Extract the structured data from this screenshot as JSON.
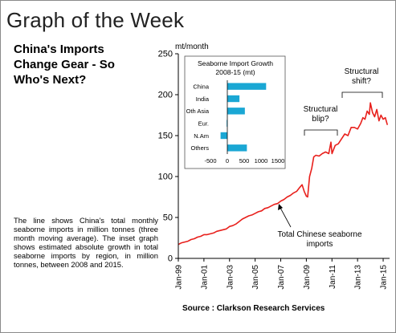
{
  "page": {
    "title": "Graph of the Week",
    "headline": "China's Imports Change Gear - So Who's Next?",
    "description": "The line shows China's total monthly seaborne imports in million tonnes (three month moving average). The inset graph shows estimated absolute growth in total seaborne imports by region, in million tonnes, between 2008 and 2015.",
    "source": "Source : Clarkson Research Services"
  },
  "colors": {
    "main_line": "#e8201c",
    "inset_bar": "#1aa7d4",
    "axis": "#000000"
  },
  "chart_data": [
    {
      "type": "line",
      "ylabel": "mt/month",
      "ylim": [
        0,
        250
      ],
      "yticks": [
        0,
        50,
        100,
        150,
        200,
        250
      ],
      "xlim": [
        1999,
        2015.5
      ],
      "xticks": [
        {
          "label": "Jan-99",
          "x": 1999
        },
        {
          "label": "Jan-01",
          "x": 2001
        },
        {
          "label": "Jan-03",
          "x": 2003
        },
        {
          "label": "Jan-05",
          "x": 2005
        },
        {
          "label": "Jan-07",
          "x": 2007
        },
        {
          "label": "Jan-09",
          "x": 2009
        },
        {
          "label": "Jan-11",
          "x": 2011
        },
        {
          "label": "Jan-13",
          "x": 2013
        },
        {
          "label": "Jan-15",
          "x": 2015
        }
      ],
      "series": [
        {
          "x": [
            1999.0,
            1999.25,
            1999.5,
            1999.75,
            2000.0,
            2000.25,
            2000.5,
            2000.75,
            2001.0,
            2001.25,
            2001.5,
            2001.75,
            2002.0,
            2002.25,
            2002.5,
            2002.75,
            2003.0,
            2003.25,
            2003.5,
            2003.75,
            2004.0,
            2004.25,
            2004.5,
            2004.75,
            2005.0,
            2005.25,
            2005.5,
            2005.75,
            2006.0,
            2006.25,
            2006.5,
            2006.75,
            2007.0,
            2007.25,
            2007.5,
            2007.75,
            2008.0,
            2008.25,
            2008.5,
            2008.67,
            2008.83,
            2009.0,
            2009.1,
            2009.25,
            2009.42,
            2009.58,
            2009.75,
            2010.0,
            2010.25,
            2010.5,
            2010.75,
            2010.92,
            2011.0,
            2011.25,
            2011.5,
            2011.75,
            2012.0,
            2012.25,
            2012.5,
            2012.75,
            2013.0,
            2013.25,
            2013.42,
            2013.58,
            2013.75,
            2013.92,
            2014.0,
            2014.17,
            2014.33,
            2014.5,
            2014.67,
            2014.83,
            2015.0,
            2015.17,
            2015.33
          ],
          "values": [
            17,
            19,
            20,
            21,
            23,
            24,
            26,
            27,
            29,
            29,
            30,
            31,
            33,
            34,
            35,
            36,
            39,
            40,
            42,
            45,
            48,
            50,
            52,
            53,
            55,
            57,
            58,
            61,
            62,
            64,
            66,
            67,
            70,
            72,
            75,
            77,
            80,
            82,
            87,
            90,
            82,
            76,
            75,
            100,
            110,
            124,
            126,
            125,
            128,
            130,
            128,
            142,
            128,
            138,
            140,
            146,
            152,
            150,
            160,
            160,
            158,
            165,
            172,
            170,
            180,
            176,
            190,
            178,
            173,
            182,
            168,
            175,
            170,
            172,
            163
          ]
        }
      ],
      "annotations": [
        "Structural blip?",
        "Structural shift?",
        "Total Chinese seaborne imports"
      ]
    },
    {
      "type": "bar",
      "orientation": "horizontal",
      "title": "Seaborne Import Growth 2008-15 (mt)",
      "categories": [
        "China",
        "India",
        "Oth Asia",
        "Eur.",
        "N.Am",
        "Others"
      ],
      "values": [
        1150,
        360,
        520,
        -20,
        -200,
        580
      ],
      "xlim": [
        -500,
        1500
      ],
      "xticks": [
        -500,
        0,
        500,
        1000,
        1500
      ]
    }
  ]
}
